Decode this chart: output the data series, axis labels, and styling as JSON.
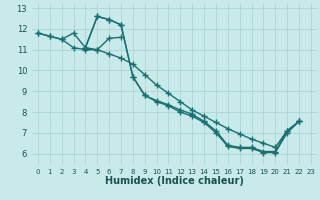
{
  "xlabel": "Humidex (Indice chaleur)",
  "ylabel": "",
  "xlim": [
    -0.5,
    23.5
  ],
  "ylim": [
    5.5,
    13.2
  ],
  "xticks": [
    0,
    1,
    2,
    3,
    4,
    5,
    6,
    7,
    8,
    9,
    10,
    11,
    12,
    13,
    14,
    15,
    16,
    17,
    18,
    19,
    20,
    21,
    22,
    23
  ],
  "yticks": [
    6,
    7,
    8,
    9,
    10,
    11,
    12,
    13
  ],
  "background_color": "#c8eaea",
  "grid_color": "#b0d4d4",
  "line_color": "#1a7070",
  "line_width": 1.0,
  "marker": "+",
  "marker_size": 4,
  "marker_edge_width": 1.0,
  "lines": [
    {
      "x": [
        0,
        1,
        2,
        3,
        4,
        5,
        6,
        7
      ],
      "y": [
        11.8,
        11.65,
        11.5,
        11.8,
        11.1,
        11.0,
        11.55,
        11.6
      ]
    },
    {
      "x": [
        4,
        5,
        6,
        7,
        8,
        9,
        10,
        11,
        12,
        13,
        14,
        15,
        16,
        17,
        18,
        19,
        20,
        21,
        22
      ],
      "y": [
        11.1,
        12.6,
        12.45,
        12.2,
        9.7,
        8.8,
        8.55,
        8.35,
        8.1,
        7.9,
        7.55,
        7.1,
        6.4,
        6.3,
        6.3,
        6.1,
        6.1,
        7.1,
        7.55
      ]
    },
    {
      "x": [
        4,
        5,
        6,
        7,
        8,
        9,
        10,
        11,
        12,
        13,
        14,
        15,
        16,
        17,
        18,
        19,
        20,
        21,
        22
      ],
      "y": [
        11.1,
        12.6,
        12.45,
        12.2,
        9.7,
        8.8,
        8.5,
        8.3,
        8.0,
        7.8,
        7.5,
        7.0,
        6.35,
        6.25,
        6.25,
        6.05,
        6.05,
        7.0,
        7.55
      ]
    },
    {
      "x": [
        0,
        1,
        2,
        3,
        4,
        5,
        6,
        7,
        8,
        9,
        10,
        11,
        12,
        13,
        14,
        15,
        16,
        17,
        18,
        19,
        20,
        21,
        22
      ],
      "y": [
        11.8,
        11.65,
        11.5,
        11.1,
        11.0,
        11.0,
        10.8,
        10.6,
        10.3,
        9.8,
        9.3,
        8.9,
        8.5,
        8.1,
        7.8,
        7.5,
        7.2,
        6.95,
        6.7,
        6.5,
        6.3,
        7.1,
        7.55
      ]
    }
  ],
  "xlabel_fontsize": 7,
  "xlabel_color": "#1a5050",
  "xlabel_bold": true,
  "xtick_fontsize": 5.0,
  "ytick_fontsize": 6.0,
  "tick_color": "#1a5050"
}
